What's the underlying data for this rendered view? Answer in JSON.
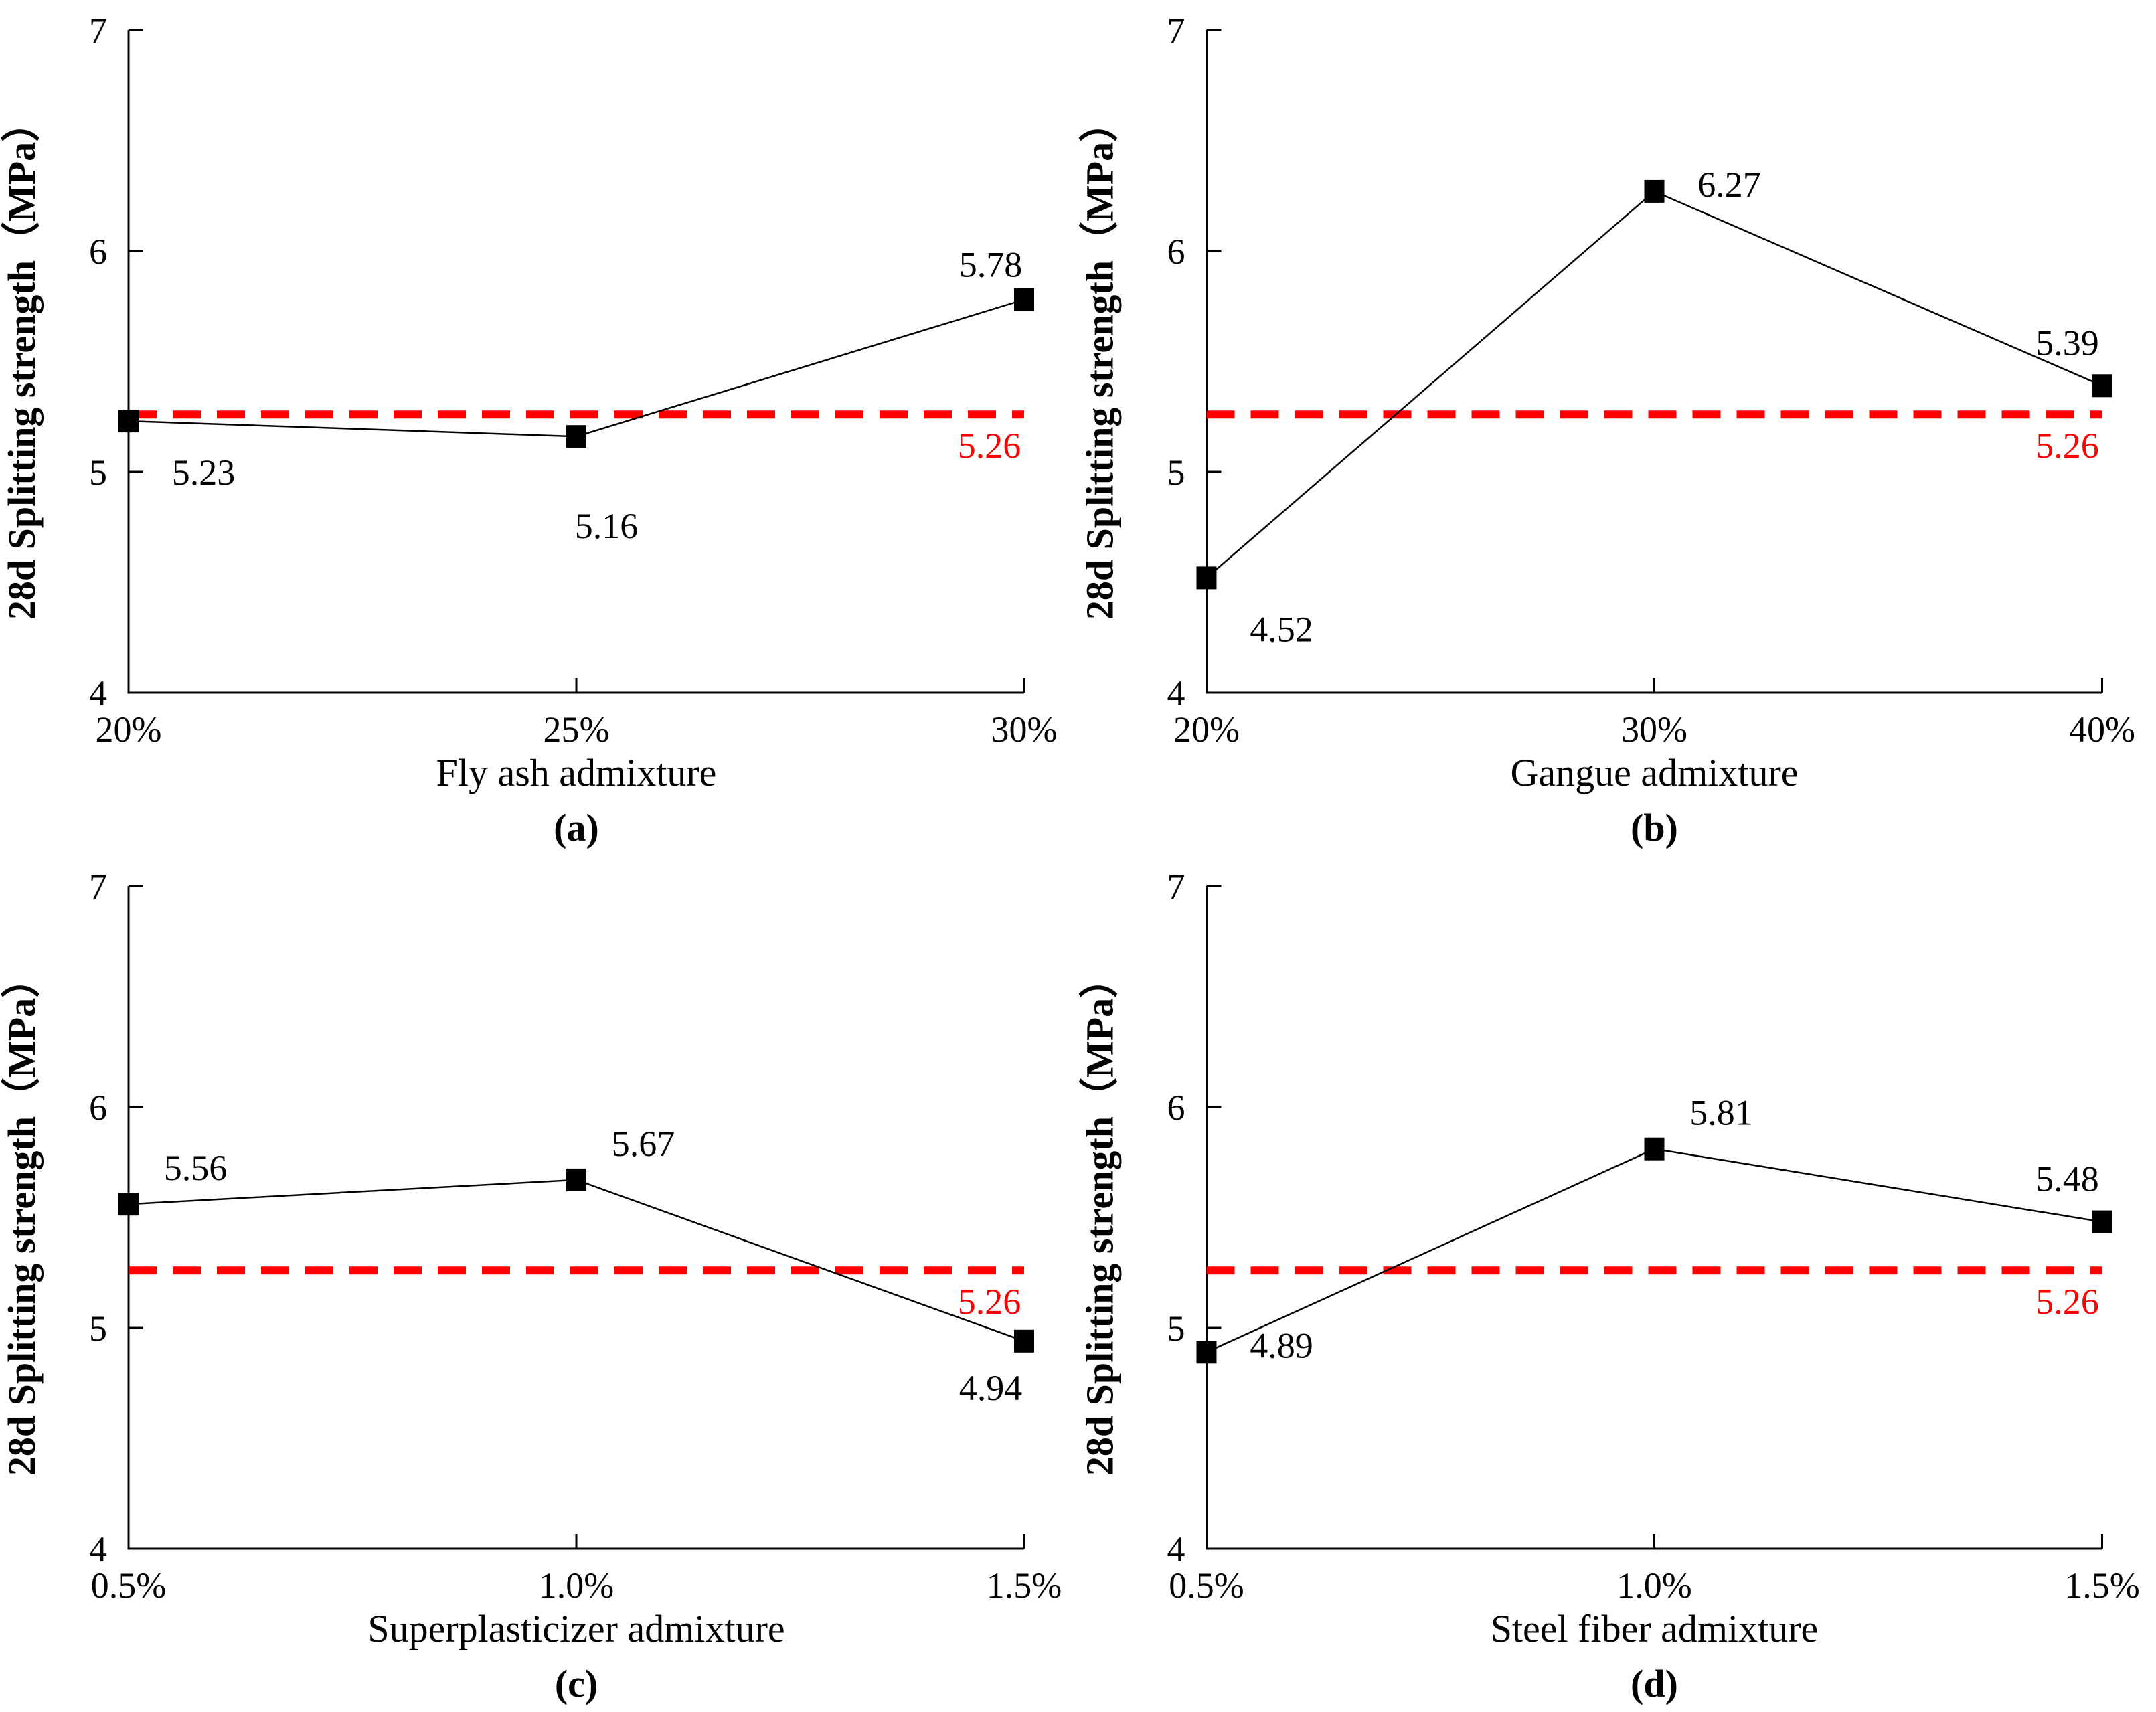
{
  "style": {
    "background": "#ffffff",
    "axis_color": "#000000",
    "series_color": "#000000",
    "reference_color": "#ff0000",
    "grid": "off",
    "legend": "none",
    "marker": "filled-square"
  },
  "chart_data": [
    {
      "type": "line",
      "panel": "a",
      "caption": "(a)",
      "xlabel": "Fly ash admixture",
      "ylabel": "28d Splitting strength（MPa）",
      "categories": [
        "20%",
        "25%",
        "30%"
      ],
      "values": [
        5.23,
        5.16,
        5.78
      ],
      "point_labels": [
        "5.23",
        "5.16",
        "5.78"
      ],
      "point_label_positions": [
        "below-right",
        "below",
        "above"
      ],
      "ylim": [
        4,
        7
      ],
      "y_ticks": [
        7,
        6,
        5,
        4
      ],
      "reference_line": {
        "value": 5.26,
        "label": "5.26",
        "style": "dashed"
      }
    },
    {
      "type": "line",
      "panel": "b",
      "caption": "(b)",
      "xlabel": "Gangue admixture",
      "ylabel": "28d Splitting strength（MPa）",
      "categories": [
        "20%",
        "30%",
        "40%"
      ],
      "values": [
        4.52,
        6.27,
        5.39
      ],
      "point_labels": [
        "4.52",
        "6.27",
        "5.39"
      ],
      "point_label_positions": [
        "below-right",
        "right",
        "above-left"
      ],
      "ylim": [
        4,
        7
      ],
      "y_ticks": [
        7,
        6,
        5,
        4
      ],
      "reference_line": {
        "value": 5.26,
        "label": "5.26",
        "style": "dashed"
      }
    },
    {
      "type": "line",
      "panel": "c",
      "caption": "(c)",
      "xlabel": "Superplasticizer admixture",
      "ylabel": "28d Splitting strength（MPa）",
      "categories": [
        "0.5%",
        "1.0%",
        "1.5%"
      ],
      "values": [
        5.56,
        5.67,
        4.94
      ],
      "point_labels": [
        "5.56",
        "5.67",
        "4.94"
      ],
      "point_label_positions": [
        "above-right",
        "above-right",
        "below-left"
      ],
      "ylim": [
        4,
        7
      ],
      "y_ticks": [
        7,
        6,
        5,
        4
      ],
      "reference_line": {
        "value": 5.26,
        "label": "5.26",
        "style": "dashed"
      }
    },
    {
      "type": "line",
      "panel": "d",
      "caption": "(d)",
      "xlabel": "Steel fiber admixture",
      "ylabel": "28d Splitting strength（MPa）",
      "categories": [
        "0.5%",
        "1.0%",
        "1.5%"
      ],
      "values": [
        4.89,
        5.81,
        5.48
      ],
      "point_labels": [
        "4.89",
        "5.81",
        "5.48"
      ],
      "point_label_positions": [
        "right",
        "above-right",
        "above-left"
      ],
      "ylim": [
        4,
        7
      ],
      "y_ticks": [
        7,
        6,
        5,
        4
      ],
      "reference_line": {
        "value": 5.26,
        "label": "5.26",
        "style": "dashed"
      }
    }
  ]
}
